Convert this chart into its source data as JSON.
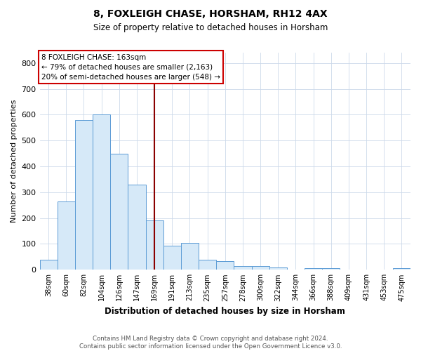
{
  "title": "8, FOXLEIGH CHASE, HORSHAM, RH12 4AX",
  "subtitle": "Size of property relative to detached houses in Horsham",
  "xlabel": "Distribution of detached houses by size in Horsham",
  "ylabel": "Number of detached properties",
  "categories": [
    "38sqm",
    "60sqm",
    "82sqm",
    "104sqm",
    "126sqm",
    "147sqm",
    "169sqm",
    "191sqm",
    "213sqm",
    "235sqm",
    "257sqm",
    "278sqm",
    "300sqm",
    "322sqm",
    "344sqm",
    "366sqm",
    "388sqm",
    "409sqm",
    "431sqm",
    "453sqm",
    "475sqm"
  ],
  "values": [
    40,
    263,
    580,
    600,
    450,
    330,
    192,
    92,
    104,
    38,
    33,
    15,
    15,
    10,
    0,
    6,
    6,
    0,
    0,
    0,
    7
  ],
  "bar_color": "#d6e9f8",
  "bar_edge_color": "#5b9bd5",
  "vline_x_index": 6,
  "vline_color": "#8b0000",
  "annotation_line1": "8 FOXLEIGH CHASE: 163sqm",
  "annotation_line2": "← 79% of detached houses are smaller (2,163)",
  "annotation_line3": "20% of semi-detached houses are larger (548) →",
  "annotation_box_color": "#ffffff",
  "annotation_box_edge": "#cc0000",
  "ylim": [
    0,
    840
  ],
  "yticks": [
    0,
    100,
    200,
    300,
    400,
    500,
    600,
    700,
    800
  ],
  "footer": "Contains HM Land Registry data © Crown copyright and database right 2024.\nContains public sector information licensed under the Open Government Licence v3.0.",
  "bg_color": "#ffffff",
  "grid_color": "#ccd9ea"
}
